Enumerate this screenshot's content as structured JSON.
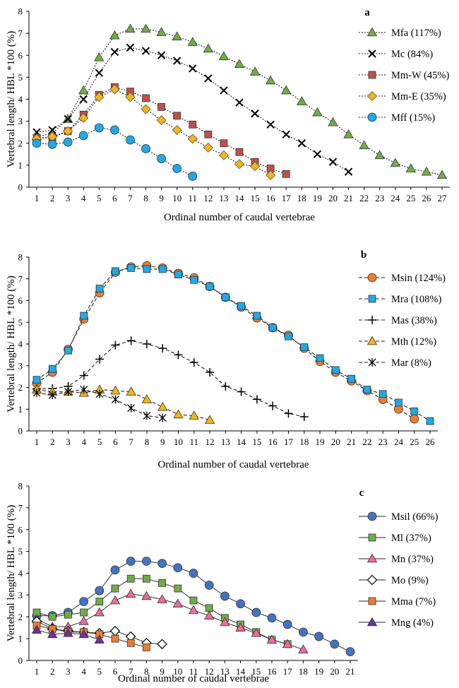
{
  "chart_data": [
    {
      "type": "line",
      "panel_label": "a",
      "xlabel": "Ordinal number of caudal vertebrae",
      "ylabel": "Vertebral length/ HBL *100 (%)",
      "xlim": [
        1,
        27
      ],
      "ylim": [
        0,
        8
      ],
      "x_ticks": [
        1,
        2,
        3,
        4,
        5,
        6,
        7,
        8,
        9,
        10,
        11,
        12,
        13,
        14,
        15,
        16,
        17,
        18,
        19,
        20,
        21,
        22,
        23,
        24,
        25,
        26,
        27
      ],
      "y_ticks": [
        0,
        1,
        2,
        3,
        4,
        5,
        6,
        7,
        8
      ],
      "grid": false,
      "legend_position": "top-right",
      "series": [
        {
          "name": "Mfa (117%)",
          "marker": "triangle",
          "color": "#70AD47",
          "line": "dotted",
          "x": [
            1,
            2,
            3,
            4,
            5,
            6,
            7,
            8,
            9,
            10,
            11,
            12,
            13,
            14,
            15,
            16,
            17,
            18,
            19,
            20,
            21,
            22,
            23,
            24,
            25,
            26,
            27
          ],
          "y": [
            2.3,
            2.45,
            3.1,
            4.4,
            5.9,
            6.9,
            7.2,
            7.2,
            7.05,
            6.85,
            6.6,
            6.3,
            5.95,
            5.6,
            5.25,
            4.85,
            4.4,
            3.9,
            3.4,
            2.95,
            2.4,
            1.9,
            1.45,
            1.1,
            0.85,
            0.7,
            0.55
          ]
        },
        {
          "name": "Mc (84%)",
          "marker": "x",
          "color": "#000000",
          "line": "dotted",
          "x": [
            1,
            2,
            3,
            4,
            5,
            6,
            7,
            8,
            9,
            10,
            11,
            12,
            13,
            14,
            15,
            16,
            17,
            18,
            19,
            20,
            21
          ],
          "y": [
            2.5,
            2.6,
            3.1,
            4.0,
            5.2,
            6.15,
            6.35,
            6.2,
            6.0,
            5.75,
            5.4,
            4.95,
            4.4,
            3.85,
            3.35,
            2.85,
            2.4,
            2.0,
            1.5,
            1.15,
            0.7
          ]
        },
        {
          "name": "Mm-W (45%)",
          "marker": "square",
          "color": "#C0504D",
          "line": "dotted",
          "x": [
            1,
            2,
            3,
            4,
            5,
            6,
            7,
            8,
            9,
            10,
            11,
            12,
            13,
            14,
            15,
            16,
            17
          ],
          "y": [
            2.25,
            2.25,
            2.55,
            3.3,
            4.2,
            4.55,
            4.35,
            4.05,
            3.65,
            3.25,
            2.85,
            2.4,
            2.0,
            1.6,
            1.15,
            0.85,
            0.6
          ]
        },
        {
          "name": "Mm-E (35%)",
          "marker": "diamond",
          "color": "#F5B417",
          "line": "dotted",
          "x": [
            1,
            2,
            3,
            4,
            5,
            6,
            7,
            8,
            9,
            10,
            11,
            12,
            13,
            14,
            15,
            16
          ],
          "y": [
            2.2,
            2.3,
            2.55,
            3.15,
            4.1,
            4.45,
            4.1,
            3.55,
            3.05,
            2.6,
            2.2,
            1.8,
            1.45,
            1.05,
            0.95,
            0.55
          ]
        },
        {
          "name": "Mff (15%)",
          "marker": "circle",
          "color": "#1FA9E8",
          "line": "dotted",
          "x": [
            1,
            2,
            3,
            4,
            5,
            6,
            7,
            8,
            9,
            10,
            11
          ],
          "y": [
            2.0,
            1.95,
            2.05,
            2.35,
            2.7,
            2.6,
            2.15,
            1.75,
            1.3,
            0.85,
            0.5
          ]
        }
      ]
    },
    {
      "type": "line",
      "panel_label": "b",
      "xlabel": "Ordinal number of caudal vertebrae",
      "ylabel": "Vertebral length/ HBL *100 (%)",
      "xlim": [
        1,
        26
      ],
      "ylim": [
        0,
        8
      ],
      "x_ticks": [
        1,
        2,
        3,
        4,
        5,
        6,
        7,
        8,
        9,
        10,
        11,
        12,
        13,
        14,
        15,
        16,
        17,
        18,
        19,
        20,
        21,
        22,
        23,
        24,
        25,
        26
      ],
      "y_ticks": [
        0,
        1,
        2,
        3,
        4,
        5,
        6,
        7,
        8
      ],
      "grid": false,
      "legend_position": "top-right",
      "series": [
        {
          "name": "Msin (124%)",
          "marker": "circle",
          "color": "#ED7D31",
          "line": "dashed",
          "x": [
            1,
            2,
            3,
            4,
            5,
            6,
            7,
            8,
            9,
            10,
            11,
            12,
            13,
            14,
            15,
            16,
            17,
            18,
            19,
            20,
            21,
            22,
            23,
            24,
            25
          ],
          "y": [
            2.2,
            2.7,
            3.75,
            5.15,
            6.35,
            7.3,
            7.55,
            7.6,
            7.5,
            7.25,
            7.05,
            6.65,
            6.15,
            5.7,
            5.2,
            4.75,
            4.4,
            3.8,
            3.2,
            2.7,
            2.3,
            1.85,
            1.45,
            1.0,
            0.55
          ]
        },
        {
          "name": "Mra (108%)",
          "marker": "square",
          "color": "#1FA9E8",
          "line": "dashed",
          "x": [
            1,
            2,
            3,
            4,
            5,
            6,
            7,
            8,
            9,
            10,
            11,
            12,
            13,
            14,
            15,
            16,
            17,
            18,
            19,
            20,
            21,
            22,
            23,
            24,
            25,
            26
          ],
          "y": [
            2.35,
            2.85,
            3.7,
            5.3,
            6.55,
            7.35,
            7.5,
            7.45,
            7.45,
            7.2,
            6.95,
            6.65,
            6.15,
            5.75,
            5.3,
            4.75,
            4.35,
            3.85,
            3.35,
            2.8,
            2.4,
            1.9,
            1.7,
            1.3,
            0.9,
            0.45
          ]
        },
        {
          "name": "Mas (38%)",
          "marker": "plus",
          "color": "#000000",
          "line": "dashed",
          "x": [
            1,
            2,
            3,
            4,
            5,
            6,
            7,
            8,
            9,
            10,
            11,
            12,
            13,
            14,
            15,
            16,
            17,
            18
          ],
          "y": [
            1.95,
            1.95,
            2.05,
            2.55,
            3.3,
            3.95,
            4.15,
            4.0,
            3.8,
            3.5,
            3.15,
            2.7,
            2.05,
            1.8,
            1.45,
            1.15,
            0.8,
            0.65
          ]
        },
        {
          "name": "Mth (12%)",
          "marker": "triangle",
          "color": "#F5B417",
          "line": "dashed",
          "x": [
            1,
            2,
            3,
            4,
            5,
            6,
            7,
            8,
            9,
            10,
            11,
            12
          ],
          "y": [
            1.9,
            1.8,
            1.8,
            1.75,
            1.9,
            1.85,
            1.8,
            1.45,
            1.1,
            0.75,
            0.7,
            0.5
          ]
        },
        {
          "name": "Mar (8%)",
          "marker": "asterisk",
          "color": "#000000",
          "line": "dashed",
          "x": [
            1,
            2,
            3,
            4,
            5,
            6,
            7,
            8,
            9
          ],
          "y": [
            1.75,
            1.65,
            1.8,
            1.9,
            1.7,
            1.45,
            1.05,
            0.7,
            0.6
          ]
        }
      ]
    },
    {
      "type": "line",
      "panel_label": "c",
      "xlabel": "Ordinal number of caudal vertebrae",
      "ylabel": "Vertebral length/ HBL *100 (%)",
      "xlim": [
        1,
        21
      ],
      "ylim": [
        0,
        8
      ],
      "x_ticks": [
        1,
        2,
        3,
        4,
        5,
        6,
        7,
        8,
        9,
        10,
        11,
        12,
        13,
        14,
        15,
        16,
        17,
        18,
        19,
        20,
        21
      ],
      "y_ticks": [
        0,
        1,
        2,
        3,
        4,
        5,
        6,
        7,
        8
      ],
      "grid": false,
      "legend_position": "top-right",
      "series": [
        {
          "name": "Msil (66%)",
          "marker": "circle",
          "color": "#4472C4",
          "line": "solid",
          "x": [
            1,
            2,
            3,
            4,
            5,
            6,
            7,
            8,
            9,
            10,
            11,
            12,
            13,
            14,
            15,
            16,
            17,
            18,
            19,
            20,
            21
          ],
          "y": [
            2.05,
            2.05,
            2.2,
            2.7,
            3.2,
            4.15,
            4.55,
            4.55,
            4.45,
            4.25,
            4.0,
            3.45,
            2.95,
            2.6,
            2.2,
            1.95,
            1.65,
            1.3,
            1.1,
            0.75,
            0.4
          ]
        },
        {
          "name": "Ml (37%)",
          "marker": "square",
          "color": "#70AD47",
          "line": "solid",
          "x": [
            1,
            2,
            3,
            4,
            5,
            6,
            7,
            8,
            9,
            10,
            11,
            12,
            13,
            14,
            15,
            16,
            17
          ],
          "y": [
            2.2,
            2.0,
            2.1,
            2.2,
            2.7,
            3.3,
            3.75,
            3.75,
            3.55,
            3.3,
            2.75,
            2.4,
            1.95,
            1.65,
            1.3,
            0.95,
            0.75
          ]
        },
        {
          "name": "Mn (37%)",
          "marker": "triangle",
          "color": "#F06A9B",
          "line": "solid",
          "x": [
            1,
            2,
            3,
            4,
            5,
            6,
            7,
            8,
            9,
            10,
            11,
            12,
            13,
            14,
            15,
            16,
            17,
            18
          ],
          "y": [
            1.9,
            1.55,
            1.55,
            1.8,
            2.2,
            2.75,
            3.05,
            2.95,
            2.8,
            2.6,
            2.3,
            2.05,
            1.75,
            1.5,
            1.25,
            0.95,
            0.75,
            0.5
          ]
        },
        {
          "name": "Mo (9%)",
          "marker": "diamond-open",
          "color": "#000000",
          "line": "solid",
          "x": [
            1,
            2,
            3,
            4,
            5,
            6,
            7,
            8,
            9
          ],
          "y": [
            1.8,
            1.45,
            1.35,
            1.3,
            1.25,
            1.35,
            1.1,
            0.8,
            0.75
          ]
        },
        {
          "name": "Mma (7%)",
          "marker": "square",
          "color": "#ED7D31",
          "line": "solid",
          "x": [
            1,
            2,
            3,
            4,
            5,
            6,
            7,
            8
          ],
          "y": [
            1.6,
            1.45,
            1.3,
            1.3,
            1.2,
            1.0,
            0.8,
            0.6
          ]
        },
        {
          "name": "Mng (4%)",
          "marker": "triangle",
          "color": "#7030A0",
          "line": "solid",
          "x": [
            1,
            2,
            3,
            4,
            5
          ],
          "y": [
            1.4,
            1.2,
            1.25,
            1.2,
            0.95
          ]
        }
      ]
    }
  ]
}
